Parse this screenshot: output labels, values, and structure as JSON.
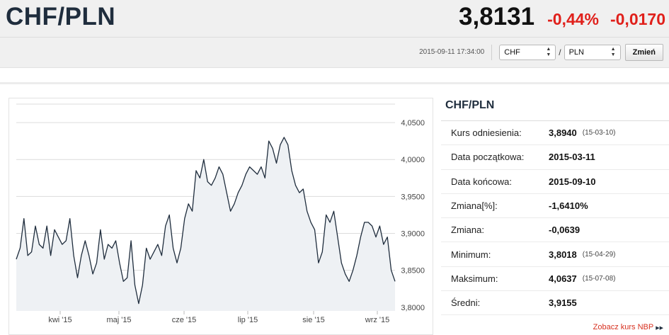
{
  "header": {
    "pair": "CHF/PLN",
    "rate": "3,8131",
    "change_pct": "-0,44%",
    "change_abs": "-0,0170",
    "timestamp": "2015-09-11 17:34:00"
  },
  "controls": {
    "from_currency": "CHF",
    "to_currency": "PLN",
    "separator": "/",
    "change_button": "Zmień"
  },
  "colors": {
    "negative": "#e0201b",
    "line": "#1f2d3d",
    "area": "#eef1f4",
    "grid": "#dcdcdc"
  },
  "chart_data": {
    "type": "area",
    "x_ticks": [
      "kwi '15",
      "maj '15",
      "cze '15",
      "lip '15",
      "sie '15",
      "wrz '15"
    ],
    "y_ticks": [
      "4,0500",
      "4,0000",
      "3,9500",
      "3,9000",
      "3,8500",
      "3,8000"
    ],
    "ylim": [
      3.795,
      4.075
    ],
    "grid": true,
    "series": [
      {
        "values": [
          3.865,
          3.88,
          3.92,
          3.87,
          3.875,
          3.91,
          3.885,
          3.88,
          3.91,
          3.87,
          3.905,
          3.895,
          3.885,
          3.89,
          3.92,
          3.87,
          3.84,
          3.87,
          3.89,
          3.87,
          3.845,
          3.86,
          3.905,
          3.865,
          3.885,
          3.88,
          3.89,
          3.86,
          3.835,
          3.84,
          3.89,
          3.83,
          3.805,
          3.83,
          3.88,
          3.865,
          3.875,
          3.885,
          3.87,
          3.91,
          3.925,
          3.88,
          3.86,
          3.88,
          3.92,
          3.94,
          3.93,
          3.985,
          3.975,
          4.0,
          3.97,
          3.965,
          3.975,
          3.99,
          3.98,
          3.955,
          3.93,
          3.94,
          3.955,
          3.965,
          3.98,
          3.99,
          3.985,
          3.98,
          3.99,
          3.975,
          4.025,
          4.015,
          3.995,
          4.02,
          4.03,
          4.02,
          3.985,
          3.965,
          3.955,
          3.96,
          3.93,
          3.915,
          3.905,
          3.86,
          3.875,
          3.925,
          3.915,
          3.93,
          3.895,
          3.86,
          3.845,
          3.835,
          3.85,
          3.87,
          3.895,
          3.915,
          3.915,
          3.91,
          3.895,
          3.91,
          3.885,
          3.895,
          3.85,
          3.835
        ]
      }
    ]
  },
  "stats": {
    "title": "CHF/PLN",
    "rows": [
      {
        "label": "Kurs odniesienia:",
        "value": "3,8940",
        "date": "(15-03-10)"
      },
      {
        "label": "Data początkowa:",
        "value": "2015-03-11",
        "date": ""
      },
      {
        "label": "Data końcowa:",
        "value": "2015-09-10",
        "date": ""
      },
      {
        "label": "Zmiana[%]:",
        "value": "-1,6410%",
        "date": ""
      },
      {
        "label": "Zmiana:",
        "value": "-0,0639",
        "date": ""
      },
      {
        "label": "Minimum:",
        "value": "3,8018",
        "date": "(15-04-29)"
      },
      {
        "label": "Maksimum:",
        "value": "4,0637",
        "date": "(15-07-08)"
      },
      {
        "label": "Średni:",
        "value": "3,9155",
        "date": ""
      }
    ],
    "nbp_link": "Zobacz kurs NBP"
  }
}
